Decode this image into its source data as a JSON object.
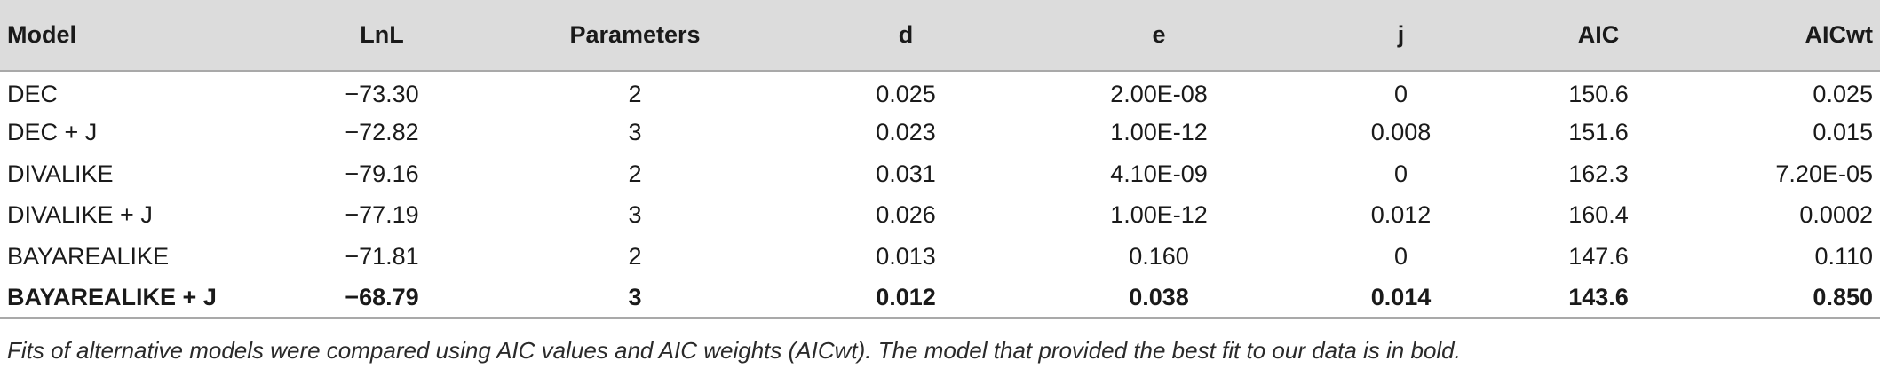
{
  "table": {
    "headers": {
      "model": "Model",
      "lnl": "LnL",
      "parameters": "Parameters",
      "d": "d",
      "e": "e",
      "j": "j",
      "aic": "AIC",
      "aicwt": "AICwt"
    },
    "rows": [
      {
        "model": "DEC",
        "lnl": "−73.30",
        "parameters": "2",
        "d": "0.025",
        "e": "2.00E-08",
        "j": "0",
        "aic": "150.6",
        "aicwt": "0.025"
      },
      {
        "model": "DEC + J",
        "lnl": "−72.82",
        "parameters": "3",
        "d": "0.023",
        "e": "1.00E-12",
        "j": "0.008",
        "aic": "151.6",
        "aicwt": "0.015"
      },
      {
        "model": "DIVALIKE",
        "lnl": "−79.16",
        "parameters": "2",
        "d": "0.031",
        "e": "4.10E-09",
        "j": "0",
        "aic": "162.3",
        "aicwt": "7.20E-05"
      },
      {
        "model": "DIVALIKE + J",
        "lnl": "−77.19",
        "parameters": "3",
        "d": "0.026",
        "e": "1.00E-12",
        "j": "0.012",
        "aic": "160.4",
        "aicwt": "0.0002"
      },
      {
        "model": "BAYAREALIKE",
        "lnl": "−71.81",
        "parameters": "2",
        "d": "0.013",
        "e": "0.160",
        "j": "0",
        "aic": "147.6",
        "aicwt": "0.110"
      },
      {
        "model": "BAYAREALIKE + J",
        "lnl": "−68.79",
        "parameters": "3",
        "d": "0.012",
        "e": "0.038",
        "j": "0.014",
        "aic": "143.6",
        "aicwt": "0.850"
      }
    ]
  },
  "caption": "Fits of alternative models were compared using AIC values and AIC weights (AICwt). The model that provided the best fit to our data is in bold."
}
